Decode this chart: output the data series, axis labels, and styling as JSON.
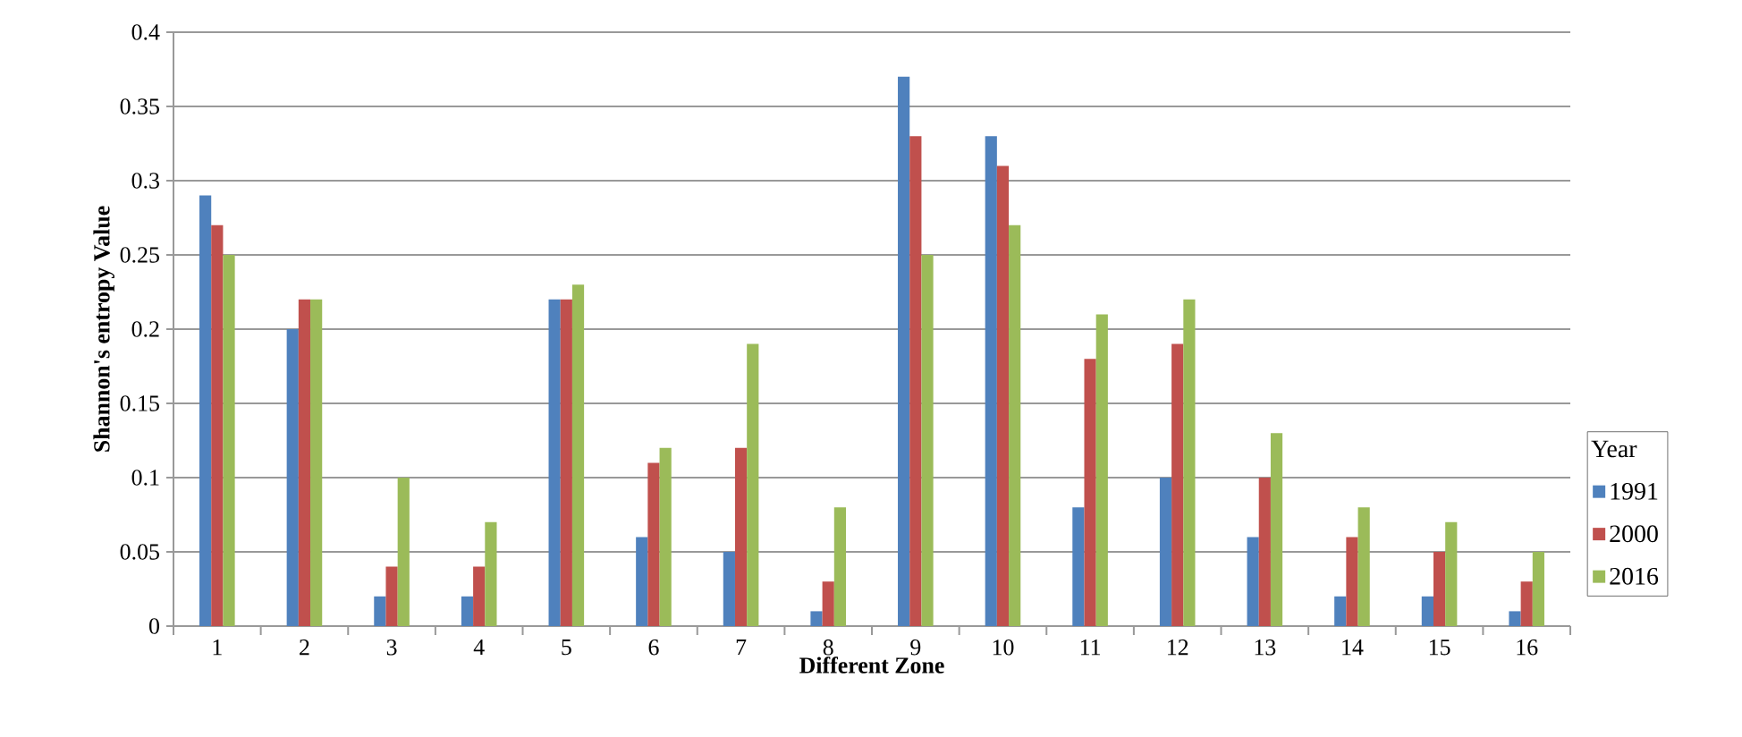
{
  "chart_data": {
    "type": "bar",
    "xlabel": "Different Zone",
    "ylabel": "Shannon's entropy Value",
    "legend_title": "Year",
    "categories": [
      "1",
      "2",
      "3",
      "4",
      "5",
      "6",
      "7",
      "8",
      "9",
      "10",
      "11",
      "12",
      "13",
      "14",
      "15",
      "16"
    ],
    "series": [
      {
        "name": "1991",
        "color": "#4f81bd",
        "values": [
          0.29,
          0.2,
          0.02,
          0.02,
          0.22,
          0.06,
          0.05,
          0.01,
          0.37,
          0.33,
          0.08,
          0.1,
          0.06,
          0.02,
          0.02,
          0.01
        ]
      },
      {
        "name": "2000",
        "color": "#c0504d",
        "values": [
          0.27,
          0.22,
          0.04,
          0.04,
          0.22,
          0.11,
          0.12,
          0.03,
          0.33,
          0.31,
          0.18,
          0.19,
          0.1,
          0.06,
          0.05,
          0.03
        ]
      },
      {
        "name": "2016",
        "color": "#9bbb59",
        "values": [
          0.25,
          0.22,
          0.1,
          0.07,
          0.23,
          0.12,
          0.19,
          0.08,
          0.25,
          0.27,
          0.21,
          0.22,
          0.13,
          0.08,
          0.07,
          0.05
        ]
      }
    ],
    "ylim": [
      0,
      0.4
    ],
    "yticks": [
      0,
      0.05,
      0.1,
      0.15,
      0.2,
      0.25,
      0.3,
      0.35,
      0.4
    ],
    "grid": "y",
    "legend": "right"
  }
}
